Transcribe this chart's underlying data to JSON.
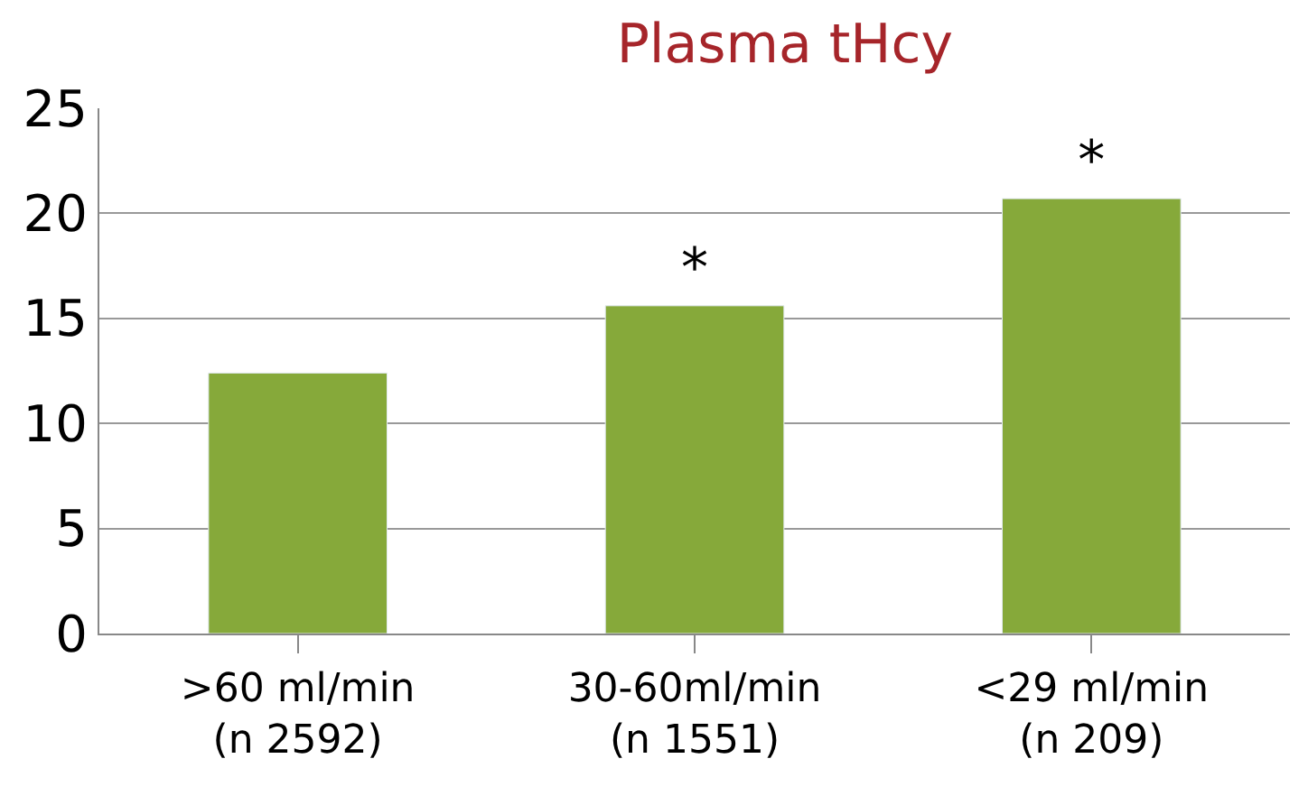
{
  "chart_data": {
    "type": "bar",
    "title": "Plasma tHcy",
    "categories": [
      ">60 ml/min\n(n 2592)",
      "30-60ml/min\n(n 1551)",
      "<29 ml/min\n(n 209)"
    ],
    "values": [
      12.4,
      15.6,
      20.7
    ],
    "value_labels": [
      null,
      "*",
      "*"
    ],
    "color": "#86a93a",
    "ylim": [
      0,
      25
    ],
    "yticks": [
      0,
      5,
      10,
      15,
      20,
      25
    ],
    "grid": "y"
  }
}
